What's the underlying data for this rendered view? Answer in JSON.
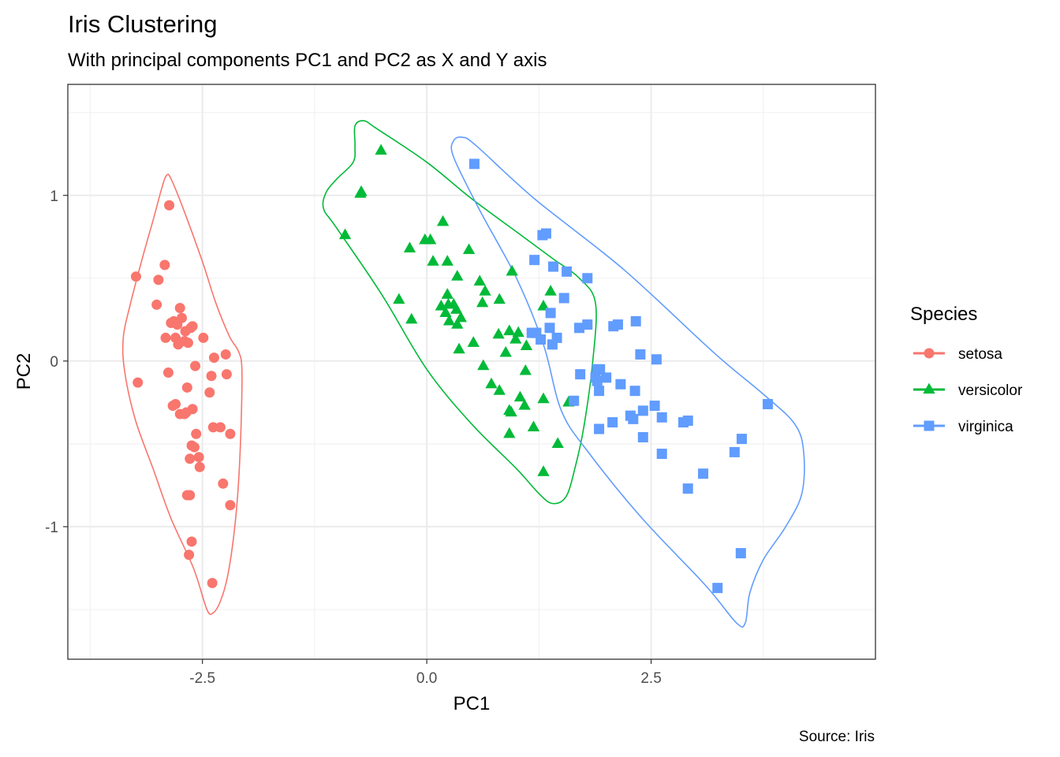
{
  "chart_data": {
    "type": "scatter",
    "title": "Iris Clustering",
    "subtitle": "With principal components PC1 and PC2 as X and Y axis",
    "xlabel": "PC1",
    "ylabel": "PC2",
    "caption": "Source: Iris",
    "xlim": [
      -4.0,
      5.0
    ],
    "ylim": [
      -1.8,
      1.67
    ],
    "x_ticks": [
      -2.5,
      0.0,
      2.5
    ],
    "x_tick_labels": [
      "-2.5",
      "0.0",
      "2.5"
    ],
    "y_ticks": [
      -1,
      0,
      1
    ],
    "y_tick_labels": [
      "-1",
      "0",
      "1"
    ],
    "grid": true,
    "legend": {
      "title": "Species",
      "placement": "right"
    },
    "series": [
      {
        "name": "setosa",
        "color": "#F8766D",
        "marker": "circle",
        "points": [
          [
            -2.87,
            0.94
          ],
          [
            -2.92,
            0.58
          ],
          [
            -3.24,
            0.51
          ],
          [
            -2.99,
            0.49
          ],
          [
            -3.01,
            0.34
          ],
          [
            -2.75,
            0.32
          ],
          [
            -2.73,
            0.26
          ],
          [
            -2.82,
            0.24
          ],
          [
            -2.85,
            0.23
          ],
          [
            -2.78,
            0.22
          ],
          [
            -2.61,
            0.21
          ],
          [
            -2.63,
            0.2
          ],
          [
            -2.69,
            0.18
          ],
          [
            -2.8,
            0.14
          ],
          [
            -2.91,
            0.14
          ],
          [
            -2.49,
            0.14
          ],
          [
            -2.7,
            0.12
          ],
          [
            -2.66,
            0.11
          ],
          [
            -2.77,
            0.1
          ],
          [
            -2.24,
            0.04
          ],
          [
            -2.37,
            0.02
          ],
          [
            -2.58,
            -0.03
          ],
          [
            -2.88,
            -0.07
          ],
          [
            -2.23,
            -0.08
          ],
          [
            -2.4,
            -0.09
          ],
          [
            -2.67,
            -0.16
          ],
          [
            -2.42,
            -0.19
          ],
          [
            -3.22,
            -0.13
          ],
          [
            -2.8,
            -0.26
          ],
          [
            -2.83,
            -0.27
          ],
          [
            -2.75,
            -0.32
          ],
          [
            -2.68,
            -0.31
          ],
          [
            -2.7,
            -0.32
          ],
          [
            -2.61,
            -0.29
          ],
          [
            -2.38,
            -0.4
          ],
          [
            -2.3,
            -0.4
          ],
          [
            -2.57,
            -0.44
          ],
          [
            -2.19,
            -0.44
          ],
          [
            -2.62,
            -0.51
          ],
          [
            -2.59,
            -0.52
          ],
          [
            -2.54,
            -0.58
          ],
          [
            -2.64,
            -0.59
          ],
          [
            -2.53,
            -0.64
          ],
          [
            -2.27,
            -0.74
          ],
          [
            -2.64,
            -0.81
          ],
          [
            -2.67,
            -0.81
          ],
          [
            -2.19,
            -0.87
          ],
          [
            -2.62,
            -1.09
          ],
          [
            -2.65,
            -1.17
          ],
          [
            -2.39,
            -1.34
          ]
        ]
      },
      {
        "name": "versicolor",
        "color": "#00BA38",
        "marker": "triangle",
        "points": [
          [
            -0.51,
            1.27
          ],
          [
            -0.73,
            1.02
          ],
          [
            -0.74,
            1.01
          ],
          [
            -0.91,
            0.76
          ],
          [
            0.18,
            0.84
          ],
          [
            -0.02,
            0.73
          ],
          [
            0.04,
            0.73
          ],
          [
            -0.19,
            0.68
          ],
          [
            0.47,
            0.67
          ],
          [
            0.07,
            0.6
          ],
          [
            0.23,
            0.6
          ],
          [
            0.34,
            0.51
          ],
          [
            0.59,
            0.48
          ],
          [
            0.95,
            0.54
          ],
          [
            1.38,
            0.42
          ],
          [
            -0.31,
            0.37
          ],
          [
            0.23,
            0.4
          ],
          [
            0.65,
            0.42
          ],
          [
            0.81,
            0.37
          ],
          [
            0.3,
            0.34
          ],
          [
            0.24,
            0.34
          ],
          [
            0.62,
            0.35
          ],
          [
            0.16,
            0.33
          ],
          [
            1.3,
            0.33
          ],
          [
            0.21,
            0.29
          ],
          [
            0.33,
            0.31
          ],
          [
            0.34,
            0.22
          ],
          [
            0.25,
            0.24
          ],
          [
            0.38,
            0.26
          ],
          [
            -0.17,
            0.25
          ],
          [
            0.8,
            0.16
          ],
          [
            0.92,
            0.18
          ],
          [
            1.02,
            0.17
          ],
          [
            0.99,
            0.13
          ],
          [
            0.52,
            0.11
          ],
          [
            1.11,
            0.09
          ],
          [
            0.36,
            0.07
          ],
          [
            0.88,
            0.05
          ],
          [
            0.63,
            -0.03
          ],
          [
            1.1,
            -0.06
          ],
          [
            0.72,
            -0.14
          ],
          [
            0.81,
            -0.18
          ],
          [
            1.04,
            -0.22
          ],
          [
            1.3,
            -0.23
          ],
          [
            1.58,
            -0.25
          ],
          [
            1.09,
            -0.27
          ],
          [
            0.92,
            -0.3
          ],
          [
            0.94,
            -0.31
          ],
          [
            1.19,
            -0.4
          ],
          [
            0.92,
            -0.44
          ],
          [
            1.46,
            -0.5
          ],
          [
            1.3,
            -0.67
          ]
        ]
      },
      {
        "name": "virginica",
        "color": "#619CFF",
        "marker": "square",
        "points": [
          [
            0.53,
            1.19
          ],
          [
            1.29,
            0.76
          ],
          [
            1.33,
            0.77
          ],
          [
            1.2,
            0.61
          ],
          [
            1.41,
            0.57
          ],
          [
            1.56,
            0.54
          ],
          [
            1.79,
            0.5
          ],
          [
            1.53,
            0.38
          ],
          [
            1.38,
            0.29
          ],
          [
            1.79,
            0.22
          ],
          [
            2.08,
            0.21
          ],
          [
            2.13,
            0.22
          ],
          [
            2.33,
            0.24
          ],
          [
            1.37,
            0.2
          ],
          [
            1.17,
            0.17
          ],
          [
            1.22,
            0.17
          ],
          [
            1.27,
            0.13
          ],
          [
            1.45,
            0.14
          ],
          [
            2.38,
            0.04
          ],
          [
            2.56,
            0.01
          ],
          [
            1.9,
            -0.05
          ],
          [
            1.93,
            -0.05
          ],
          [
            1.71,
            -0.08
          ],
          [
            1.88,
            -0.1
          ],
          [
            1.92,
            -0.18
          ],
          [
            2.16,
            -0.14
          ],
          [
            2.32,
            -0.18
          ],
          [
            2.54,
            -0.27
          ],
          [
            2.41,
            -0.3
          ],
          [
            1.64,
            -0.24
          ],
          [
            2.86,
            -0.37
          ],
          [
            2.91,
            -0.36
          ],
          [
            2.62,
            -0.34
          ],
          [
            2.27,
            -0.33
          ],
          [
            2.07,
            -0.37
          ],
          [
            1.92,
            -0.41
          ],
          [
            2.41,
            -0.46
          ],
          [
            3.51,
            -0.47
          ],
          [
            3.8,
            -0.26
          ],
          [
            2.62,
            -0.56
          ],
          [
            3.43,
            -0.55
          ],
          [
            3.08,
            -0.68
          ],
          [
            2.91,
            -0.77
          ],
          [
            3.5,
            -1.16
          ],
          [
            3.24,
            -1.37
          ],
          [
            1.9,
            -0.12
          ],
          [
            2.0,
            -0.1
          ],
          [
            1.4,
            0.1
          ],
          [
            1.7,
            0.2
          ],
          [
            2.3,
            -0.35
          ]
        ]
      }
    ],
    "hulls": [
      {
        "series": "setosa",
        "path": [
          [
            -2.9,
            1.12
          ],
          [
            -2.85,
            1.1
          ],
          [
            -2.7,
            0.9
          ],
          [
            -2.5,
            0.6
          ],
          [
            -2.35,
            0.35
          ],
          [
            -2.2,
            0.15
          ],
          [
            -2.1,
            0.06
          ],
          [
            -2.06,
            -0.05
          ],
          [
            -2.07,
            -0.4
          ],
          [
            -2.1,
            -0.75
          ],
          [
            -2.15,
            -1.05
          ],
          [
            -2.22,
            -1.3
          ],
          [
            -2.3,
            -1.45
          ],
          [
            -2.38,
            -1.52
          ],
          [
            -2.45,
            -1.5
          ],
          [
            -2.6,
            -1.25
          ],
          [
            -2.85,
            -0.95
          ],
          [
            -3.05,
            -0.65
          ],
          [
            -3.25,
            -0.35
          ],
          [
            -3.37,
            -0.05
          ],
          [
            -3.38,
            0.15
          ],
          [
            -3.3,
            0.35
          ],
          [
            -3.18,
            0.6
          ],
          [
            -3.05,
            0.85
          ],
          [
            -2.95,
            1.05
          ]
        ]
      },
      {
        "series": "versicolor",
        "path": [
          [
            -0.8,
            1.42
          ],
          [
            -0.7,
            1.45
          ],
          [
            -0.55,
            1.4
          ],
          [
            0.0,
            1.2
          ],
          [
            0.5,
            0.98
          ],
          [
            1.0,
            0.78
          ],
          [
            1.4,
            0.62
          ],
          [
            1.7,
            0.5
          ],
          [
            1.88,
            0.35
          ],
          [
            1.85,
            0.0
          ],
          [
            1.75,
            -0.4
          ],
          [
            1.65,
            -0.65
          ],
          [
            1.55,
            -0.82
          ],
          [
            1.4,
            -0.86
          ],
          [
            1.25,
            -0.8
          ],
          [
            1.0,
            -0.65
          ],
          [
            0.5,
            -0.38
          ],
          [
            0.0,
            -0.05
          ],
          [
            -0.5,
            0.4
          ],
          [
            -1.0,
            0.8
          ],
          [
            -1.15,
            0.92
          ],
          [
            -1.12,
            1.02
          ],
          [
            -1.0,
            1.1
          ],
          [
            -0.82,
            1.2
          ],
          [
            -0.8,
            1.3
          ]
        ]
      },
      {
        "series": "virginica",
        "path": [
          [
            0.3,
            1.33
          ],
          [
            0.4,
            1.35
          ],
          [
            0.55,
            1.3
          ],
          [
            1.2,
            0.98
          ],
          [
            2.2,
            0.55
          ],
          [
            3.2,
            0.05
          ],
          [
            3.75,
            -0.2
          ],
          [
            4.1,
            -0.38
          ],
          [
            4.2,
            -0.55
          ],
          [
            4.18,
            -0.8
          ],
          [
            4.0,
            -1.0
          ],
          [
            3.75,
            -1.2
          ],
          [
            3.6,
            -1.4
          ],
          [
            3.55,
            -1.58
          ],
          [
            3.45,
            -1.58
          ],
          [
            3.1,
            -1.35
          ],
          [
            2.4,
            -0.95
          ],
          [
            1.8,
            -0.55
          ],
          [
            1.5,
            -0.3
          ],
          [
            1.3,
            0.1
          ],
          [
            1.0,
            0.5
          ],
          [
            0.6,
            0.9
          ],
          [
            0.3,
            1.23
          ]
        ]
      }
    ]
  }
}
